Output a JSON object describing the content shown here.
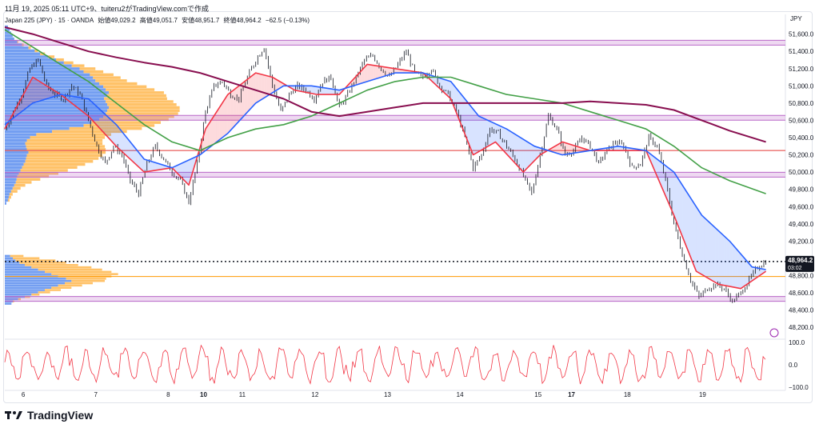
{
  "header": {
    "publish_line": "11月 19, 2025 05:11 UTC+9、tuiteru2がTradingView.comで作成",
    "symbol": "Japan 225 (JPY) · 15 · OANDA",
    "open": "始値49,029.2",
    "high": "高値49,051.7",
    "low": "安値48,951.7",
    "close": "終値48,964.2",
    "change": "−62.5 (−0.13%)"
  },
  "currency": "JPY",
  "brand": {
    "name": "TradingView"
  },
  "price_label": {
    "value": "48,964.2",
    "countdown": "03:02"
  },
  "colors": {
    "candle": "#131722",
    "ema_fast": "#f23645",
    "ema_mid": "#2962ff",
    "ema_slow": "#43a047",
    "ema_long": "#880e4f",
    "fill_up": "#f23645",
    "fill_down": "#2962ff",
    "vp_up": "#ffb74d",
    "vp_down": "#5b8def",
    "zone": "#ba68c8",
    "red_line": "#e53935",
    "orange_line": "#ff9800",
    "oscillator": "#f23645"
  },
  "chart_data": {
    "type": "line",
    "title": "Japan 225 (JPY) · 15 · OANDA",
    "y_axis": {
      "ticks": [
        "51,600.0",
        "51,400.0",
        "51,200.0",
        "51,000.0",
        "50,800.0",
        "50,600.0",
        "50,400.0",
        "50,200.0",
        "50,000.0",
        "49,800.0",
        "49,600.0",
        "49,400.0",
        "49,200.0",
        "49,000.0",
        "48,800.0",
        "48,600.0",
        "48,400.0",
        "48,200.0"
      ],
      "ylim": [
        48100,
        51680
      ]
    },
    "x_axis": {
      "ticks": [
        "6",
        "7",
        "8",
        "10",
        "11",
        "12",
        "13",
        "14",
        "15",
        "17",
        "18",
        "19"
      ],
      "bold": [
        "10",
        "17"
      ]
    },
    "price_path": [
      [
        0,
        50500
      ],
      [
        3,
        50700
      ],
      [
        6,
        50900
      ],
      [
        9,
        51200
      ],
      [
        12,
        51300
      ],
      [
        15,
        51000
      ],
      [
        18,
        50900
      ],
      [
        21,
        50850
      ],
      [
        24,
        51000
      ],
      [
        27,
        50900
      ],
      [
        30,
        50600
      ],
      [
        33,
        50300
      ],
      [
        36,
        50100
      ],
      [
        39,
        50300
      ],
      [
        42,
        50200
      ],
      [
        45,
        49900
      ],
      [
        48,
        49750
      ],
      [
        51,
        50100
      ],
      [
        54,
        50300
      ],
      [
        57,
        50150
      ],
      [
        60,
        50000
      ],
      [
        63,
        49900
      ],
      [
        66,
        49650
      ],
      [
        69,
        50100
      ],
      [
        72,
        50700
      ],
      [
        75,
        51000
      ],
      [
        78,
        51050
      ],
      [
        81,
        50900
      ],
      [
        84,
        50850
      ],
      [
        87,
        51100
      ],
      [
        90,
        51300
      ],
      [
        93,
        51450
      ],
      [
        96,
        51000
      ],
      [
        99,
        50700
      ],
      [
        102,
        50900
      ],
      [
        105,
        51000
      ],
      [
        108,
        50950
      ],
      [
        111,
        50850
      ],
      [
        114,
        51050
      ],
      [
        117,
        51100
      ],
      [
        120,
        50750
      ],
      [
        123,
        50900
      ],
      [
        126,
        51100
      ],
      [
        129,
        51300
      ],
      [
        132,
        51350
      ],
      [
        135,
        51200
      ],
      [
        138,
        51100
      ],
      [
        141,
        51250
      ],
      [
        144,
        51400
      ],
      [
        147,
        51150
      ],
      [
        150,
        51100
      ],
      [
        153,
        51200
      ],
      [
        156,
        51000
      ],
      [
        159,
        50900
      ],
      [
        162,
        50700
      ],
      [
        165,
        50400
      ],
      [
        168,
        50050
      ],
      [
        171,
        50200
      ],
      [
        174,
        50500
      ],
      [
        177,
        50450
      ],
      [
        180,
        50300
      ],
      [
        183,
        50150
      ],
      [
        186,
        49950
      ],
      [
        189,
        49750
      ],
      [
        192,
        50200
      ],
      [
        195,
        50650
      ],
      [
        198,
        50500
      ],
      [
        201,
        50200
      ],
      [
        204,
        50250
      ],
      [
        207,
        50400
      ],
      [
        210,
        50300
      ],
      [
        213,
        50100
      ],
      [
        216,
        50250
      ],
      [
        219,
        50350
      ],
      [
        222,
        50300
      ],
      [
        225,
        50050
      ],
      [
        228,
        50100
      ],
      [
        231,
        50400
      ],
      [
        234,
        50300
      ],
      [
        237,
        49900
      ],
      [
        240,
        49400
      ],
      [
        243,
        49050
      ],
      [
        246,
        48750
      ],
      [
        249,
        48550
      ],
      [
        252,
        48650
      ],
      [
        255,
        48700
      ],
      [
        258,
        48650
      ],
      [
        261,
        48500
      ],
      [
        264,
        48600
      ],
      [
        267,
        48750
      ],
      [
        270,
        48900
      ],
      [
        273,
        48964
      ]
    ],
    "series": [
      {
        "name": "",
        "color": "#f23645",
        "path": [
          [
            0,
            50500
          ],
          [
            10,
            51100
          ],
          [
            20,
            50900
          ],
          [
            30,
            50650
          ],
          [
            40,
            50300
          ],
          [
            50,
            50000
          ],
          [
            60,
            50050
          ],
          [
            66,
            49850
          ],
          [
            72,
            50500
          ],
          [
            80,
            50900
          ],
          [
            90,
            51150
          ],
          [
            96,
            51100
          ],
          [
            104,
            50950
          ],
          [
            112,
            50900
          ],
          [
            120,
            50900
          ],
          [
            130,
            51250
          ],
          [
            140,
            51200
          ],
          [
            150,
            51150
          ],
          [
            160,
            50850
          ],
          [
            168,
            50200
          ],
          [
            176,
            50350
          ],
          [
            186,
            50000
          ],
          [
            192,
            50200
          ],
          [
            200,
            50350
          ],
          [
            210,
            50250
          ],
          [
            220,
            50250
          ],
          [
            230,
            50250
          ],
          [
            240,
            49500
          ],
          [
            248,
            48850
          ],
          [
            256,
            48700
          ],
          [
            264,
            48650
          ],
          [
            273,
            48850
          ]
        ]
      },
      {
        "name": "",
        "color": "#2962ff",
        "path": [
          [
            0,
            50550
          ],
          [
            10,
            50800
          ],
          [
            20,
            50900
          ],
          [
            30,
            50850
          ],
          [
            40,
            50550
          ],
          [
            50,
            50150
          ],
          [
            60,
            50050
          ],
          [
            70,
            50200
          ],
          [
            80,
            50450
          ],
          [
            90,
            50800
          ],
          [
            100,
            51000
          ],
          [
            110,
            51000
          ],
          [
            120,
            50950
          ],
          [
            130,
            51050
          ],
          [
            140,
            51150
          ],
          [
            150,
            51150
          ],
          [
            160,
            51050
          ],
          [
            170,
            50650
          ],
          [
            180,
            50500
          ],
          [
            190,
            50300
          ],
          [
            200,
            50200
          ],
          [
            210,
            50250
          ],
          [
            220,
            50300
          ],
          [
            230,
            50250
          ],
          [
            240,
            50000
          ],
          [
            250,
            49500
          ],
          [
            260,
            49200
          ],
          [
            268,
            48900
          ],
          [
            273,
            48870
          ]
        ]
      },
      {
        "name": "",
        "color": "#43a047",
        "path": [
          [
            0,
            51650
          ],
          [
            10,
            51450
          ],
          [
            20,
            51250
          ],
          [
            30,
            51050
          ],
          [
            40,
            50800
          ],
          [
            50,
            50550
          ],
          [
            60,
            50350
          ],
          [
            70,
            50250
          ],
          [
            80,
            50400
          ],
          [
            90,
            50500
          ],
          [
            100,
            50550
          ],
          [
            110,
            50650
          ],
          [
            120,
            50800
          ],
          [
            130,
            50950
          ],
          [
            140,
            51050
          ],
          [
            150,
            51100
          ],
          [
            160,
            51100
          ],
          [
            170,
            51000
          ],
          [
            180,
            50900
          ],
          [
            190,
            50850
          ],
          [
            200,
            50800
          ],
          [
            210,
            50700
          ],
          [
            220,
            50600
          ],
          [
            230,
            50500
          ],
          [
            240,
            50300
          ],
          [
            250,
            50050
          ],
          [
            260,
            49900
          ],
          [
            273,
            49750
          ]
        ]
      },
      {
        "name": "",
        "color": "#880e4f",
        "path": [
          [
            0,
            51680
          ],
          [
            10,
            51600
          ],
          [
            20,
            51500
          ],
          [
            30,
            51400
          ],
          [
            40,
            51330
          ],
          [
            50,
            51270
          ],
          [
            60,
            51220
          ],
          [
            70,
            51150
          ],
          [
            80,
            51050
          ],
          [
            90,
            50950
          ],
          [
            100,
            50850
          ],
          [
            110,
            50700
          ],
          [
            120,
            50650
          ],
          [
            130,
            50700
          ],
          [
            140,
            50750
          ],
          [
            150,
            50800
          ],
          [
            160,
            50800
          ],
          [
            170,
            50800
          ],
          [
            180,
            50800
          ],
          [
            190,
            50800
          ],
          [
            200,
            50800
          ],
          [
            210,
            50820
          ],
          [
            220,
            50800
          ],
          [
            230,
            50780
          ],
          [
            240,
            50720
          ],
          [
            250,
            50600
          ],
          [
            260,
            50480
          ],
          [
            273,
            50350
          ]
        ]
      }
    ],
    "horizontal_levels": [
      {
        "kind": "zone",
        "price": 51500
      },
      {
        "kind": "zone",
        "price": 50630
      },
      {
        "kind": "zone",
        "price": 49970
      },
      {
        "kind": "zone",
        "price": 48530
      },
      {
        "kind": "red",
        "price": 50250
      },
      {
        "kind": "orange",
        "price": 48790
      },
      {
        "kind": "last",
        "price": 48964
      }
    ],
    "volume_profile_upper": {
      "price_range": [
        49620,
        51700
      ],
      "down": [
        2,
        4,
        5,
        6,
        8,
        10,
        12,
        14,
        15,
        16,
        18,
        20,
        22,
        24,
        26,
        27,
        28,
        30,
        28,
        27,
        26,
        28,
        32,
        40,
        60,
        82,
        100,
        110,
        120,
        125,
        128,
        130,
        132,
        130,
        128,
        126,
        130,
        132,
        128,
        125,
        120,
        115,
        112,
        108,
        100,
        95,
        85,
        75,
        65,
        55,
        45,
        38,
        30,
        22,
        16,
        12,
        10,
        8,
        6,
        4
      ],
      "up": [
        0,
        2,
        3,
        4,
        8,
        10,
        14,
        20,
        30,
        40,
        50,
        60,
        70,
        78,
        86,
        92,
        96,
        98,
        100,
        100,
        98,
        96,
        95,
        95,
        95,
        92,
        90,
        88,
        88,
        90,
        92,
        92,
        90,
        88,
        86,
        80,
        75,
        70,
        62,
        55,
        48,
        40,
        35,
        30,
        25,
        20,
        16,
        12,
        10,
        8,
        6,
        4,
        3,
        2,
        1,
        0,
        0,
        0,
        0,
        0
      ]
    },
    "volume_profile_lower": {
      "price_range": [
        48460,
        49040
      ],
      "down": [
        10,
        12,
        20,
        30,
        40,
        50,
        60,
        70,
        80,
        90,
        100,
        92,
        80,
        70,
        60,
        50,
        40,
        30,
        22,
        16,
        12,
        8
      ],
      "up": [
        0,
        2,
        4,
        8,
        12,
        18,
        24,
        30,
        36,
        42,
        50,
        60,
        80,
        100,
        100,
        96,
        90,
        80,
        70,
        60,
        40,
        20
      ]
    },
    "oscillator": {
      "ticks": [
        "100.0",
        "0.0",
        "−100.0"
      ],
      "ylim": [
        -100,
        100
      ]
    }
  }
}
